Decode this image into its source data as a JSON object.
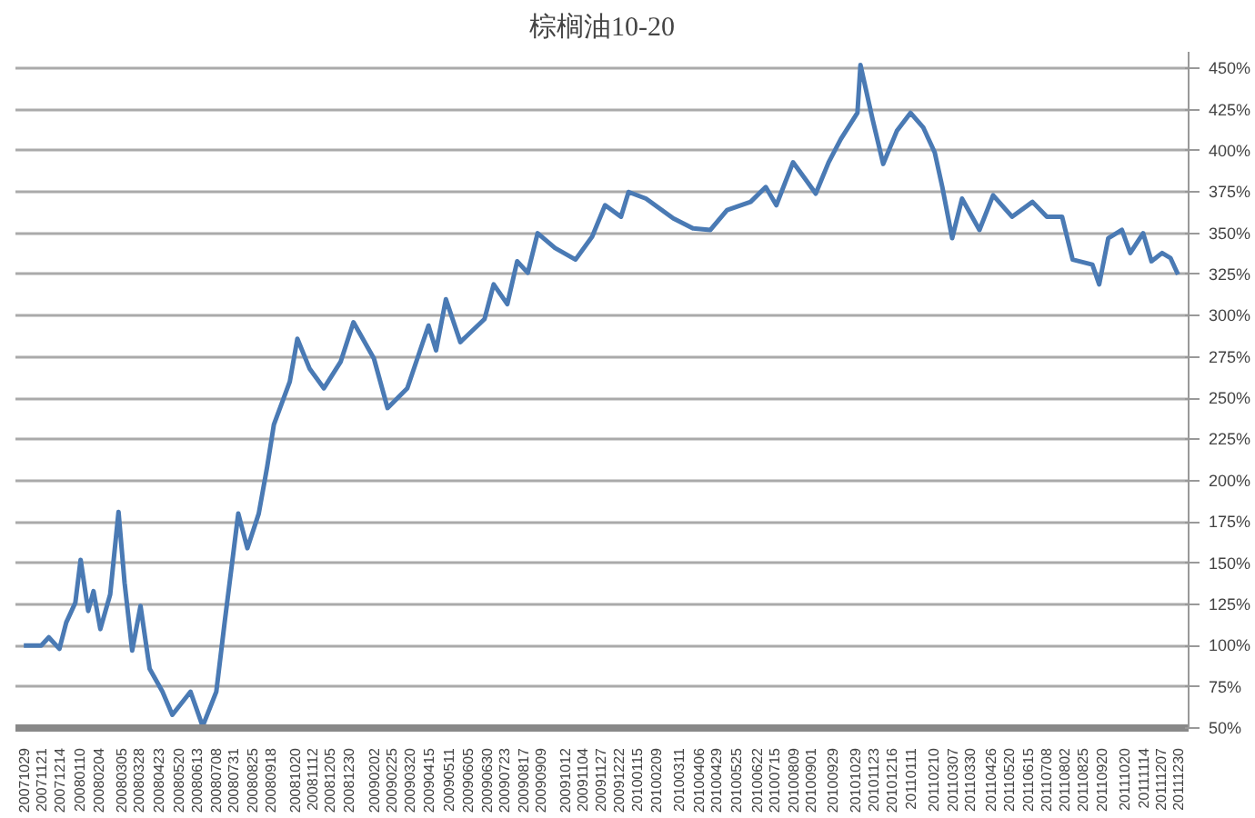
{
  "chart_data": {
    "type": "line",
    "title": "棕榈油10-20",
    "x": [
      "2007-10-29",
      "2007-11-21",
      "2007-12-01",
      "2007-12-15",
      "2007-12-24",
      "2008-01-05",
      "2008-01-12",
      "2008-01-22",
      "2008-01-29",
      "2008-02-07",
      "2008-02-20",
      "2008-03-02",
      "2008-03-10",
      "2008-03-20",
      "2008-03-31",
      "2008-04-12",
      "2008-04-29",
      "2008-05-12",
      "2008-06-05",
      "2008-06-21",
      "2008-07-09",
      "2008-07-20",
      "2008-08-07",
      "2008-08-19",
      "2008-09-03",
      "2008-09-14",
      "2008-09-23",
      "2008-10-14",
      "2008-10-24",
      "2008-11-09",
      "2008-11-28",
      "2008-12-20",
      "2009-01-06",
      "2009-02-02",
      "2009-02-20",
      "2009-03-18",
      "2009-04-15",
      "2009-04-25",
      "2009-05-08",
      "2009-05-27",
      "2009-06-28",
      "2009-07-10",
      "2009-07-28",
      "2009-08-10",
      "2009-08-24",
      "2009-09-06",
      "2009-09-29",
      "2009-10-26",
      "2009-11-17",
      "2009-12-04",
      "2009-12-25",
      "2010-01-04",
      "2010-01-27",
      "2010-03-04",
      "2010-03-30",
      "2010-04-22",
      "2010-05-14",
      "2010-06-14",
      "2010-07-04",
      "2010-07-18",
      "2010-08-09",
      "2010-08-25",
      "2010-09-08",
      "2010-09-25",
      "2010-10-11",
      "2010-11-02",
      "2010-11-06",
      "2010-11-22",
      "2010-12-06",
      "2010-12-24",
      "2011-01-11",
      "2011-01-28",
      "2011-02-12",
      "2011-02-22",
      "2011-03-07",
      "2011-03-20",
      "2011-04-12",
      "2011-04-30",
      "2011-05-25",
      "2011-06-21",
      "2011-07-10",
      "2011-07-30",
      "2011-08-13",
      "2011-09-08",
      "2011-09-17",
      "2011-09-29",
      "2011-10-17",
      "2011-10-28",
      "2011-11-14",
      "2011-11-25",
      "2011-12-09",
      "2011-12-20",
      "2011-12-30"
    ],
    "series": [
      {
        "color": "#4a7ab4",
        "values": [
          100,
          100,
          105,
          98,
          114,
          126,
          152,
          121,
          133,
          110,
          131,
          181,
          138,
          97,
          124,
          86,
          72,
          58,
          72,
          51,
          72,
          114,
          180,
          159,
          180,
          208,
          234,
          260,
          286,
          268,
          256,
          272,
          296,
          274,
          244,
          256,
          294,
          279,
          310,
          284,
          298,
          319,
          307,
          333,
          326,
          350,
          341,
          334,
          348,
          367,
          360,
          375,
          371,
          359,
          353,
          352,
          364,
          369,
          378,
          367,
          393,
          383,
          374,
          393,
          407,
          423,
          452,
          419,
          392,
          412,
          423,
          414,
          399,
          378,
          347,
          371,
          352,
          373,
          360,
          369,
          360,
          360,
          334,
          331,
          319,
          347,
          352,
          338,
          350,
          333,
          338,
          335,
          325
        ]
      }
    ],
    "xlim": [
      "2007-10-18",
      "2012-01-13"
    ],
    "xticks": [
      {
        "value": "2007-10-29",
        "label": "20071029"
      },
      {
        "value": "2007-11-21",
        "label": "20071121"
      },
      {
        "value": "2007-12-14",
        "label": "20071214"
      },
      {
        "value": "2008-01-10",
        "label": "20080110"
      },
      {
        "value": "2008-02-04",
        "label": "20080204"
      },
      {
        "value": "2008-03-05",
        "label": "20080305"
      },
      {
        "value": "2008-03-28",
        "label": "20080328"
      },
      {
        "value": "2008-04-23",
        "label": "20080423"
      },
      {
        "value": "2008-05-20",
        "label": "20080520"
      },
      {
        "value": "2008-06-13",
        "label": "20080613"
      },
      {
        "value": "2008-07-08",
        "label": "20080708"
      },
      {
        "value": "2008-07-31",
        "label": "20080731"
      },
      {
        "value": "2008-08-25",
        "label": "20080825"
      },
      {
        "value": "2008-09-18",
        "label": "20080918"
      },
      {
        "value": "2008-10-20",
        "label": "20081020"
      },
      {
        "value": "2008-11-12",
        "label": "20081112"
      },
      {
        "value": "2008-12-05",
        "label": "20081205"
      },
      {
        "value": "2008-12-30",
        "label": "20081230"
      },
      {
        "value": "2009-02-02",
        "label": "20090202"
      },
      {
        "value": "2009-02-25",
        "label": "20090225"
      },
      {
        "value": "2009-03-20",
        "label": "20090320"
      },
      {
        "value": "2009-04-15",
        "label": "20090415"
      },
      {
        "value": "2009-05-11",
        "label": "20090511"
      },
      {
        "value": "2009-06-05",
        "label": "20090605"
      },
      {
        "value": "2009-06-30",
        "label": "20090630"
      },
      {
        "value": "2009-07-23",
        "label": "20090723"
      },
      {
        "value": "2009-08-17",
        "label": "20090817"
      },
      {
        "value": "2009-09-09",
        "label": "20090909"
      },
      {
        "value": "2009-10-12",
        "label": "20091012"
      },
      {
        "value": "2009-11-04",
        "label": "20091104"
      },
      {
        "value": "2009-11-27",
        "label": "20091127"
      },
      {
        "value": "2009-12-22",
        "label": "20091222"
      },
      {
        "value": "2010-01-15",
        "label": "20100115"
      },
      {
        "value": "2010-02-09",
        "label": "20100209"
      },
      {
        "value": "2010-03-11",
        "label": "20100311"
      },
      {
        "value": "2010-04-06",
        "label": "20100406"
      },
      {
        "value": "2010-04-29",
        "label": "20100429"
      },
      {
        "value": "2010-05-25",
        "label": "20100525"
      },
      {
        "value": "2010-06-22",
        "label": "20100622"
      },
      {
        "value": "2010-07-15",
        "label": "20100715"
      },
      {
        "value": "2010-08-09",
        "label": "20100809"
      },
      {
        "value": "2010-09-01",
        "label": "20100901"
      },
      {
        "value": "2010-09-29",
        "label": "20100929"
      },
      {
        "value": "2010-10-29",
        "label": "20101029"
      },
      {
        "value": "2010-11-23",
        "label": "20101123"
      },
      {
        "value": "2010-12-16",
        "label": "20101216"
      },
      {
        "value": "2011-01-11",
        "label": "20110111"
      },
      {
        "value": "2011-02-10",
        "label": "20110210"
      },
      {
        "value": "2011-03-07",
        "label": "20110307"
      },
      {
        "value": "2011-03-30",
        "label": "20110330"
      },
      {
        "value": "2011-04-26",
        "label": "20110426"
      },
      {
        "value": "2011-05-20",
        "label": "20110520"
      },
      {
        "value": "2011-06-15",
        "label": "20110615"
      },
      {
        "value": "2011-07-08",
        "label": "20110708"
      },
      {
        "value": "2011-08-02",
        "label": "20110802"
      },
      {
        "value": "2011-08-25",
        "label": "20110825"
      },
      {
        "value": "2011-09-20",
        "label": "20110920"
      },
      {
        "value": "2011-10-20",
        "label": "20111020"
      },
      {
        "value": "2011-11-14",
        "label": "20111114"
      },
      {
        "value": "2011-12-07",
        "label": "20111207"
      },
      {
        "value": "2011-12-30",
        "label": "20111230"
      }
    ],
    "ylim": [
      50,
      460
    ],
    "yticks": [
      {
        "value": 50,
        "label": "50%"
      },
      {
        "value": 75,
        "label": "75%"
      },
      {
        "value": 100,
        "label": "100%"
      },
      {
        "value": 125,
        "label": "125%"
      },
      {
        "value": 150,
        "label": "150%"
      },
      {
        "value": 175,
        "label": "175%"
      },
      {
        "value": 200,
        "label": "200%"
      },
      {
        "value": 225,
        "label": "225%"
      },
      {
        "value": 250,
        "label": "250%"
      },
      {
        "value": 275,
        "label": "275%"
      },
      {
        "value": 300,
        "label": "300%"
      },
      {
        "value": 325,
        "label": "325%"
      },
      {
        "value": 350,
        "label": "350%"
      },
      {
        "value": 375,
        "label": "375%"
      },
      {
        "value": 400,
        "label": "400%"
      },
      {
        "value": 425,
        "label": "425%"
      },
      {
        "value": 450,
        "label": "450%"
      }
    ],
    "grid": "y",
    "marker": "none",
    "line_style": "solid"
  }
}
